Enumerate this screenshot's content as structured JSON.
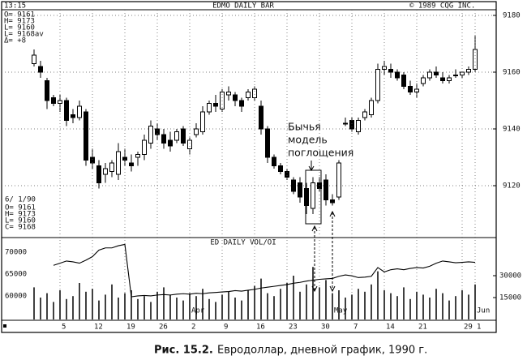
{
  "header": {
    "time": "13:15",
    "title": "EDMO DAILY BAR",
    "copyright": "© 1989 CQG INC.",
    "quote_lines": [
      "O= 9161",
      "H= 9173",
      "L= 9160",
      "L= 9168av",
      "Δ=   +8"
    ]
  },
  "chart_data": [
    {
      "type": "candlestick",
      "color": "#000",
      "ylim": [
        9102,
        9182
      ],
      "yticks": [
        9120,
        9140,
        9160,
        9180
      ],
      "grid": true,
      "date_label": "6/ 1/90",
      "last_quote_lines": [
        "O= 9161",
        "H= 9173",
        "L= 9160",
        "C= 9168"
      ],
      "annotation": [
        "Бычья",
        "модель",
        "поглощения"
      ],
      "open": [
        9163,
        9162,
        9157,
        9151,
        9149,
        9150,
        9145,
        9144,
        9146,
        9130,
        9127,
        9124,
        9125,
        9124,
        9130,
        9128,
        9130,
        9131,
        9135,
        9140,
        9138,
        9136,
        9136,
        9140,
        9133,
        9138,
        9139,
        9146,
        9149,
        9147,
        9152,
        9152,
        9150,
        9151,
        9151,
        9148,
        9140,
        9130,
        9127,
        9125,
        9122,
        9121,
        9119,
        9112,
        9121,
        9122,
        9115,
        9116,
        9142,
        9143,
        9139,
        9144,
        9145,
        9150,
        9161,
        9161,
        9160,
        9159,
        9155,
        9153,
        9156,
        9158,
        9160,
        9158,
        9157,
        9159,
        9159,
        9160,
        9161
      ],
      "high": [
        9168,
        9164,
        9158,
        9152,
        9152,
        9151,
        9147,
        9150,
        9147,
        9133,
        9129,
        9128,
        9129,
        9135,
        9133,
        9131,
        9132,
        9138,
        9143,
        9142,
        9140,
        9139,
        9140,
        9141,
        9137,
        9142,
        9148,
        9150,
        9152,
        9154,
        9155,
        9153,
        9151,
        9154,
        9155,
        9150,
        9141,
        9131,
        9128,
        9126,
        9123,
        9123,
        9121,
        9123,
        9123,
        9124,
        9117,
        9129,
        9144,
        9144,
        9144,
        9147,
        9151,
        9163,
        9164,
        9163,
        9161,
        9160,
        9157,
        9156,
        9159,
        9161,
        9162,
        9160,
        9159,
        9161,
        9160,
        9162,
        9173
      ],
      "low": [
        9162,
        9158,
        9147,
        9148,
        9146,
        9141,
        9142,
        9143,
        9127,
        9126,
        9119,
        9121,
        9123,
        9122,
        9127,
        9125,
        9127,
        9129,
        9133,
        9136,
        9133,
        9132,
        9135,
        9134,
        9131,
        9137,
        9138,
        9145,
        9146,
        9146,
        9150,
        9148,
        9146,
        9150,
        9150,
        9138,
        9128,
        9126,
        9124,
        9122,
        9117,
        9114,
        9110,
        9110,
        9118,
        9113,
        9113,
        9115,
        9141,
        9139,
        9138,
        9143,
        9144,
        9149,
        9159,
        9158,
        9157,
        9154,
        9152,
        9151,
        9155,
        9157,
        9158,
        9156,
        9156,
        9158,
        9158,
        9159,
        9160
      ],
      "close": [
        9166,
        9160,
        9150,
        9149,
        9150,
        9143,
        9144,
        9148,
        9129,
        9128,
        9121,
        9126,
        9128,
        9132,
        9129,
        9127,
        9131,
        9136,
        9141,
        9138,
        9135,
        9134,
        9139,
        9135,
        9136,
        9140,
        9146,
        9149,
        9148,
        9153,
        9153,
        9150,
        9148,
        9153,
        9154,
        9140,
        9130,
        9127,
        9125,
        9123,
        9118,
        9116,
        9113,
        9121,
        9119,
        9115,
        9114,
        9128,
        9142,
        9140,
        9143,
        9146,
        9150,
        9161,
        9162,
        9160,
        9158,
        9155,
        9153,
        9154,
        9158,
        9160,
        9159,
        9157,
        9158,
        9159,
        9160,
        9161,
        9168
      ]
    },
    {
      "type": "bar_line",
      "title": "ED DAILY VOL/OI",
      "categories": [
        null,
        null,
        null,
        null,
        "5",
        null,
        null,
        null,
        null,
        "12",
        null,
        null,
        null,
        null,
        "19",
        null,
        null,
        null,
        null,
        "26",
        null,
        null,
        null,
        null,
        "2",
        null,
        null,
        null,
        null,
        "9",
        null,
        null,
        null,
        null,
        "16",
        null,
        null,
        null,
        null,
        "23",
        null,
        null,
        null,
        null,
        "30",
        null,
        null,
        null,
        null,
        "7",
        null,
        null,
        null,
        null,
        "14",
        null,
        null,
        null,
        null,
        "21",
        null,
        null,
        null,
        null,
        null,
        null,
        "29",
        null,
        "1"
      ],
      "month_labels": [
        null,
        null,
        null,
        null,
        null,
        null,
        null,
        null,
        null,
        null,
        null,
        null,
        null,
        null,
        null,
        null,
        null,
        null,
        null,
        null,
        null,
        null,
        null,
        null,
        "Apr",
        null,
        null,
        null,
        null,
        null,
        null,
        null,
        null,
        null,
        null,
        null,
        null,
        null,
        null,
        null,
        null,
        null,
        null,
        null,
        null,
        null,
        "May",
        null,
        null,
        null,
        null,
        null,
        null,
        null,
        null,
        null,
        null,
        null,
        null,
        null,
        null,
        null,
        null,
        null,
        null,
        null,
        null,
        null,
        "Jun"
      ],
      "ylim": [
        54600,
        73000
      ],
      "yticks": [
        60000,
        65000,
        70000
      ],
      "y2lim": [
        0,
        55000
      ],
      "y2ticks": [
        15000,
        30000
      ],
      "series": [
        {
          "type": "line",
          "color": "#000",
          "values": [
            null,
            null,
            null,
            67000,
            67500,
            68000,
            67800,
            67500,
            68200,
            69000,
            70500,
            71000,
            71000,
            71500,
            71800,
            59800,
            60000,
            60100,
            60000,
            60200,
            60300,
            60200,
            60400,
            60500,
            60400,
            60600,
            60500,
            60700,
            60800,
            60900,
            61000,
            61200,
            61100,
            61300,
            61500,
            61800,
            62000,
            62200,
            62400,
            62600,
            62900,
            63100,
            63400,
            63600,
            63800,
            63900,
            64000,
            64500,
            64800,
            64600,
            64200,
            64300,
            64500,
            66500,
            65500,
            66000,
            66200,
            66000,
            66300,
            66500,
            66400,
            66800,
            67500,
            68000,
            67800,
            67600,
            67700,
            67800,
            67700
          ]
        },
        {
          "type": "bar",
          "axis": "y2",
          "color": "#000",
          "values": [
            22000,
            15000,
            18000,
            12000,
            20000,
            14000,
            16000,
            25000,
            19000,
            21000,
            13000,
            17000,
            24000,
            15000,
            18000,
            20000,
            14000,
            16000,
            12000,
            19000,
            22000,
            17000,
            15000,
            13000,
            18000,
            16000,
            21000,
            14000,
            12000,
            17000,
            19000,
            15000,
            13000,
            20000,
            23000,
            28000,
            18000,
            16000,
            21000,
            25000,
            30000,
            19000,
            24000,
            36000,
            22000,
            27000,
            18000,
            20000,
            15000,
            17000,
            21000,
            19000,
            24000,
            33000,
            20000,
            18000,
            16000,
            22000,
            14000,
            19000,
            17000,
            15000,
            21000,
            18000,
            13000,
            16000,
            20000,
            17000,
            24000
          ]
        }
      ]
    }
  ],
  "caption": {
    "label": "Рис. 15.2.",
    "text": "Евродоллар, дневной график, 1990 г."
  }
}
